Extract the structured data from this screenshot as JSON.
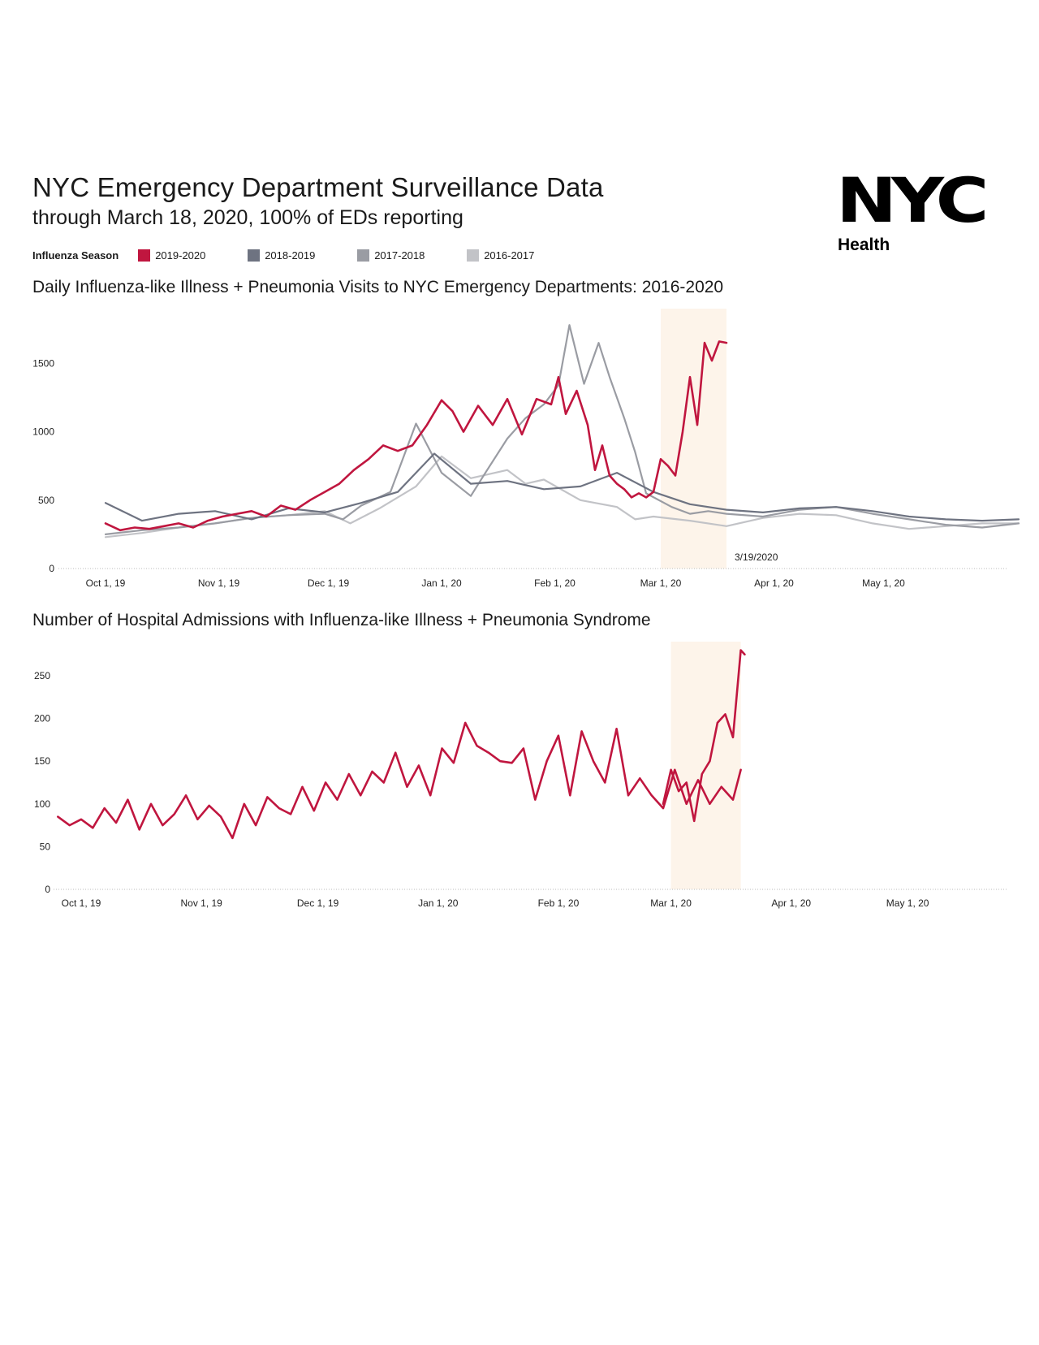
{
  "header": {
    "title": "NYC Emergency Department Surveillance Data",
    "subtitle": "through March 18, 2020, 100% of EDs reporting"
  },
  "logo": {
    "word": "NYC",
    "sub": "Health"
  },
  "legend": {
    "label": "Influenza Season",
    "items": [
      {
        "name": "2019-2020",
        "color": "#c0163f"
      },
      {
        "name": "2018-2019",
        "color": "#6e7381"
      },
      {
        "name": "2017-2018",
        "color": "#9a9ca3"
      },
      {
        "name": "2016-2017",
        "color": "#c2c3c7"
      }
    ]
  },
  "chart_data": [
    {
      "type": "line",
      "title": "Daily Influenza-like Illness + Pneumonia Visits to NYC Emergency Departments: 2016-2020",
      "xlabel": "",
      "ylabel": "",
      "ylim": [
        0,
        1900
      ],
      "yticks": [
        0,
        500,
        1000,
        1500
      ],
      "xticks": [
        "Oct 1, 19",
        "Nov 1, 19",
        "Dec 1, 19",
        "Jan 1, 20",
        "Feb 1, 20",
        "Mar 1, 20",
        "Apr 1, 20",
        "May 1, 20"
      ],
      "xlim_days": [
        -8,
        252
      ],
      "highlight_days": [
        152,
        170
      ],
      "annotation": {
        "day": 170,
        "text": "3/19/2020"
      },
      "series": [
        {
          "name": "2016-2017",
          "color": "#c2c3c7",
          "x": [
            0,
            10,
            20,
            30,
            40,
            50,
            60,
            67,
            75,
            85,
            92,
            100,
            110,
            115,
            120,
            130,
            140,
            145,
            150,
            160,
            170,
            180,
            190,
            200,
            210,
            220,
            230,
            240,
            250
          ],
          "values": [
            230,
            260,
            300,
            330,
            370,
            390,
            420,
            330,
            440,
            600,
            820,
            660,
            720,
            620,
            650,
            500,
            450,
            360,
            380,
            350,
            310,
            370,
            400,
            390,
            330,
            290,
            310,
            330,
            330
          ]
        },
        {
          "name": "2017-2018",
          "color": "#9a9ca3",
          "x": [
            0,
            10,
            20,
            30,
            40,
            50,
            60,
            65,
            70,
            78,
            85,
            92,
            100,
            104,
            110,
            115,
            120,
            124,
            127,
            131,
            135,
            138,
            142,
            145,
            148,
            155,
            160,
            165,
            170,
            180,
            190,
            200,
            210,
            220,
            230,
            240,
            250
          ],
          "values": [
            250,
            280,
            300,
            330,
            370,
            390,
            400,
            360,
            460,
            560,
            1060,
            700,
            530,
            700,
            950,
            1100,
            1200,
            1340,
            1780,
            1350,
            1650,
            1400,
            1100,
            850,
            550,
            450,
            400,
            420,
            400,
            380,
            430,
            450,
            400,
            360,
            320,
            300,
            330
          ]
        },
        {
          "name": "2018-2019",
          "color": "#6e7381",
          "x": [
            0,
            10,
            20,
            30,
            40,
            50,
            60,
            70,
            80,
            90,
            100,
            110,
            120,
            130,
            140,
            150,
            160,
            170,
            180,
            190,
            200,
            210,
            220,
            230,
            240,
            250
          ],
          "values": [
            480,
            350,
            400,
            420,
            360,
            440,
            410,
            480,
            560,
            840,
            620,
            640,
            580,
            600,
            700,
            560,
            470,
            430,
            410,
            440,
            450,
            420,
            380,
            360,
            350,
            360
          ]
        },
        {
          "name": "2019-2020",
          "color": "#c0163f",
          "x": [
            0,
            4,
            8,
            12,
            16,
            20,
            24,
            28,
            32,
            36,
            40,
            44,
            48,
            52,
            56,
            60,
            64,
            68,
            72,
            76,
            80,
            84,
            88,
            92,
            95,
            98,
            102,
            106,
            110,
            114,
            118,
            122,
            124,
            126,
            129,
            132,
            134,
            136,
            138,
            140,
            142,
            144,
            146,
            148,
            150,
            152,
            154,
            156,
            158,
            160,
            162,
            164,
            166,
            168,
            170
          ],
          "values": [
            330,
            280,
            300,
            290,
            310,
            330,
            300,
            350,
            380,
            400,
            420,
            380,
            460,
            430,
            500,
            560,
            620,
            720,
            800,
            900,
            860,
            900,
            1050,
            1230,
            1150,
            1000,
            1190,
            1050,
            1240,
            980,
            1240,
            1200,
            1400,
            1130,
            1300,
            1050,
            720,
            900,
            680,
            620,
            580,
            520,
            550,
            520,
            560,
            800,
            750,
            680,
            1000,
            1400,
            1050,
            1650,
            1520,
            1660,
            1650
          ]
        }
      ]
    },
    {
      "type": "line",
      "title": "Number of Hospital Admissions with Influenza-like Illness + Pneumonia Syndrome",
      "xlabel": "",
      "ylabel": "",
      "ylim": [
        0,
        290
      ],
      "yticks": [
        0,
        50,
        100,
        150,
        200,
        250
      ],
      "xticks": [
        "Oct 1, 19",
        "Nov 1, 19",
        "Dec 1, 19",
        "Jan 1, 20",
        "Feb 1, 20",
        "Mar 1, 20",
        "Apr 1, 20",
        "May 1, 20"
      ],
      "xlim_days": [
        -6,
        252
      ],
      "highlight_days": [
        152,
        170
      ],
      "series": [
        {
          "name": "2019-2020",
          "color": "#c0163f",
          "x": [
            -6,
            -3,
            0,
            3,
            6,
            9,
            12,
            15,
            18,
            21,
            24,
            27,
            30,
            33,
            36,
            39,
            42,
            45,
            48,
            51,
            54,
            57,
            60,
            63,
            66,
            69,
            72,
            75,
            78,
            81,
            84,
            87,
            90,
            93,
            96,
            99,
            102,
            105,
            108,
            111,
            114,
            117,
            120,
            123,
            126,
            129,
            132,
            135,
            138,
            141,
            144,
            147,
            150,
            153,
            156,
            159,
            162,
            165,
            168,
            170
          ],
          "values": [
            85,
            75,
            82,
            72,
            95,
            78,
            105,
            70,
            100,
            75,
            88,
            110,
            82,
            98,
            85,
            60,
            100,
            75,
            108,
            95,
            88,
            120,
            92,
            125,
            105,
            135,
            110,
            138,
            125,
            160,
            120,
            145,
            110,
            165,
            148,
            195,
            168,
            160,
            150,
            148,
            165,
            105,
            150,
            180,
            110,
            185,
            150,
            125,
            188,
            110,
            130,
            110,
            95,
            140,
            100,
            128,
            100,
            120,
            105,
            140
          ]
        },
        {
          "name": "2019-2020-tail",
          "color": "#c0163f",
          "x": [
            150,
            152,
            154,
            156,
            158,
            160,
            162,
            164,
            166,
            168,
            170,
            171
          ],
          "values": [
            100,
            140,
            115,
            125,
            80,
            135,
            150,
            195,
            205,
            178,
            280,
            275
          ]
        }
      ]
    }
  ]
}
